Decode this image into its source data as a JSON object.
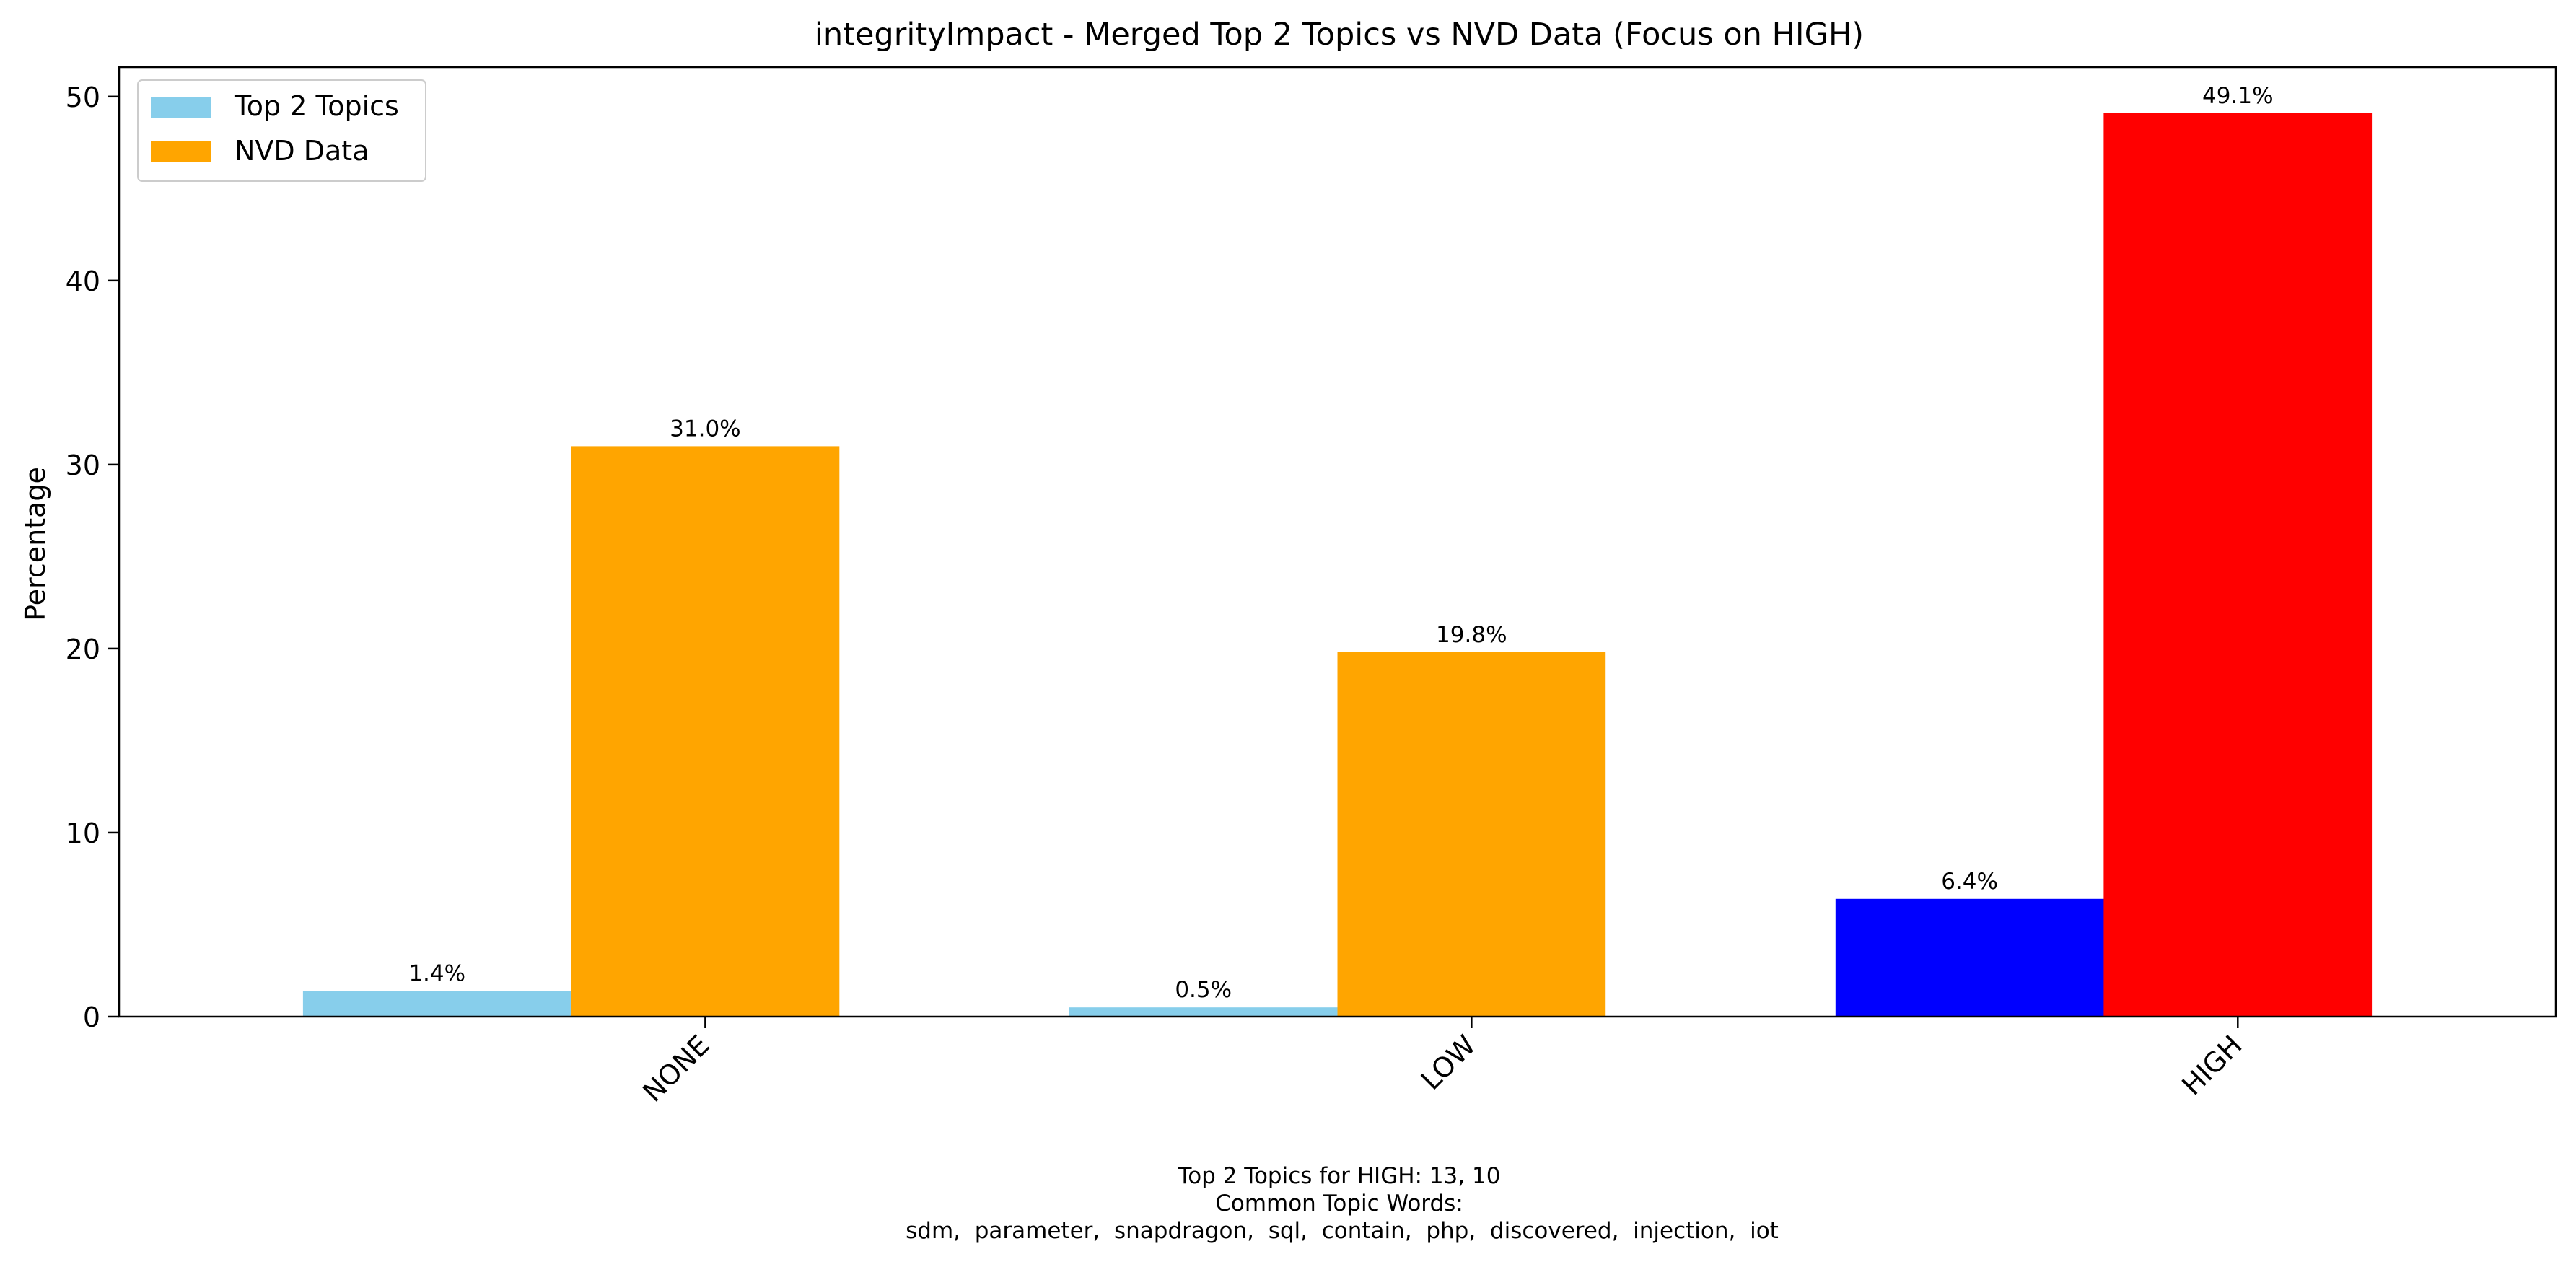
{
  "chart_data": {
    "type": "bar",
    "title": "integrityImpact - Merged Top 2 Topics vs NVD Data (Focus on HIGH)",
    "xlabel": "",
    "ylabel": "Percentage",
    "categories": [
      "NONE",
      "LOW",
      "HIGH"
    ],
    "ylim": [
      0,
      51.6
    ],
    "yticks": [
      0,
      10,
      20,
      30,
      40,
      50
    ],
    "grid": false,
    "legend_position": "upper-left",
    "series": [
      {
        "name": "Top 2 Topics",
        "values": [
          1.4,
          0.5,
          6.4
        ],
        "labels": [
          "1.4%",
          "0.5%",
          "6.4%"
        ],
        "color": "#87ceeb",
        "bar_colors": [
          "#87ceeb",
          "#87ceeb",
          "#0000ff"
        ]
      },
      {
        "name": "NVD Data",
        "values": [
          31.0,
          19.8,
          49.1
        ],
        "labels": [
          "31.0%",
          "19.8%",
          "49.1%"
        ],
        "color": "#ffa500",
        "bar_colors": [
          "#ffa500",
          "#ffa500",
          "#ff0000"
        ]
      }
    ],
    "annotation": [
      "Top 2 Topics for HIGH: 13, 10",
      "Common Topic Words:",
      "sdm,  parameter,  snapdragon,  sql,  contain,  php,  discovered,  injection,  iot"
    ]
  }
}
